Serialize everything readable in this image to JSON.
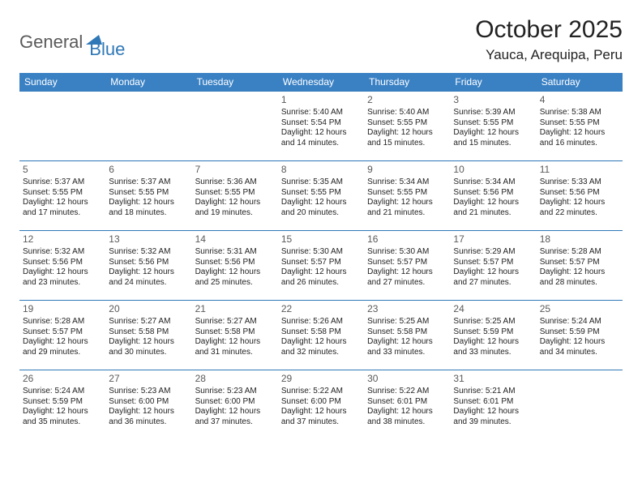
{
  "logo": {
    "text1": "General",
    "text2": "Blue"
  },
  "title": "October 2025",
  "location": "Yauca, Arequipa, Peru",
  "colors": {
    "header_bg": "#3a81c4",
    "header_text": "#ffffff",
    "border": "#2f78b7",
    "daynum": "#5a5a5a",
    "body_text": "#222222",
    "logo_gray": "#5a5a5a",
    "logo_blue": "#2f78b7",
    "background": "#ffffff"
  },
  "typography": {
    "month_title_size": 30,
    "location_size": 17,
    "header_cell_size": 12,
    "daynum_size": 12,
    "body_size": 10,
    "logo_size": 22
  },
  "weekdays": [
    "Sunday",
    "Monday",
    "Tuesday",
    "Wednesday",
    "Thursday",
    "Friday",
    "Saturday"
  ],
  "weeks": [
    [
      null,
      null,
      null,
      {
        "n": "1",
        "sr": "Sunrise: 5:40 AM",
        "ss": "Sunset: 5:54 PM",
        "d1": "Daylight: 12 hours",
        "d2": "and 14 minutes."
      },
      {
        "n": "2",
        "sr": "Sunrise: 5:40 AM",
        "ss": "Sunset: 5:55 PM",
        "d1": "Daylight: 12 hours",
        "d2": "and 15 minutes."
      },
      {
        "n": "3",
        "sr": "Sunrise: 5:39 AM",
        "ss": "Sunset: 5:55 PM",
        "d1": "Daylight: 12 hours",
        "d2": "and 15 minutes."
      },
      {
        "n": "4",
        "sr": "Sunrise: 5:38 AM",
        "ss": "Sunset: 5:55 PM",
        "d1": "Daylight: 12 hours",
        "d2": "and 16 minutes."
      }
    ],
    [
      {
        "n": "5",
        "sr": "Sunrise: 5:37 AM",
        "ss": "Sunset: 5:55 PM",
        "d1": "Daylight: 12 hours",
        "d2": "and 17 minutes."
      },
      {
        "n": "6",
        "sr": "Sunrise: 5:37 AM",
        "ss": "Sunset: 5:55 PM",
        "d1": "Daylight: 12 hours",
        "d2": "and 18 minutes."
      },
      {
        "n": "7",
        "sr": "Sunrise: 5:36 AM",
        "ss": "Sunset: 5:55 PM",
        "d1": "Daylight: 12 hours",
        "d2": "and 19 minutes."
      },
      {
        "n": "8",
        "sr": "Sunrise: 5:35 AM",
        "ss": "Sunset: 5:55 PM",
        "d1": "Daylight: 12 hours",
        "d2": "and 20 minutes."
      },
      {
        "n": "9",
        "sr": "Sunrise: 5:34 AM",
        "ss": "Sunset: 5:55 PM",
        "d1": "Daylight: 12 hours",
        "d2": "and 21 minutes."
      },
      {
        "n": "10",
        "sr": "Sunrise: 5:34 AM",
        "ss": "Sunset: 5:56 PM",
        "d1": "Daylight: 12 hours",
        "d2": "and 21 minutes."
      },
      {
        "n": "11",
        "sr": "Sunrise: 5:33 AM",
        "ss": "Sunset: 5:56 PM",
        "d1": "Daylight: 12 hours",
        "d2": "and 22 minutes."
      }
    ],
    [
      {
        "n": "12",
        "sr": "Sunrise: 5:32 AM",
        "ss": "Sunset: 5:56 PM",
        "d1": "Daylight: 12 hours",
        "d2": "and 23 minutes."
      },
      {
        "n": "13",
        "sr": "Sunrise: 5:32 AM",
        "ss": "Sunset: 5:56 PM",
        "d1": "Daylight: 12 hours",
        "d2": "and 24 minutes."
      },
      {
        "n": "14",
        "sr": "Sunrise: 5:31 AM",
        "ss": "Sunset: 5:56 PM",
        "d1": "Daylight: 12 hours",
        "d2": "and 25 minutes."
      },
      {
        "n": "15",
        "sr": "Sunrise: 5:30 AM",
        "ss": "Sunset: 5:57 PM",
        "d1": "Daylight: 12 hours",
        "d2": "and 26 minutes."
      },
      {
        "n": "16",
        "sr": "Sunrise: 5:30 AM",
        "ss": "Sunset: 5:57 PM",
        "d1": "Daylight: 12 hours",
        "d2": "and 27 minutes."
      },
      {
        "n": "17",
        "sr": "Sunrise: 5:29 AM",
        "ss": "Sunset: 5:57 PM",
        "d1": "Daylight: 12 hours",
        "d2": "and 27 minutes."
      },
      {
        "n": "18",
        "sr": "Sunrise: 5:28 AM",
        "ss": "Sunset: 5:57 PM",
        "d1": "Daylight: 12 hours",
        "d2": "and 28 minutes."
      }
    ],
    [
      {
        "n": "19",
        "sr": "Sunrise: 5:28 AM",
        "ss": "Sunset: 5:57 PM",
        "d1": "Daylight: 12 hours",
        "d2": "and 29 minutes."
      },
      {
        "n": "20",
        "sr": "Sunrise: 5:27 AM",
        "ss": "Sunset: 5:58 PM",
        "d1": "Daylight: 12 hours",
        "d2": "and 30 minutes."
      },
      {
        "n": "21",
        "sr": "Sunrise: 5:27 AM",
        "ss": "Sunset: 5:58 PM",
        "d1": "Daylight: 12 hours",
        "d2": "and 31 minutes."
      },
      {
        "n": "22",
        "sr": "Sunrise: 5:26 AM",
        "ss": "Sunset: 5:58 PM",
        "d1": "Daylight: 12 hours",
        "d2": "and 32 minutes."
      },
      {
        "n": "23",
        "sr": "Sunrise: 5:25 AM",
        "ss": "Sunset: 5:58 PM",
        "d1": "Daylight: 12 hours",
        "d2": "and 33 minutes."
      },
      {
        "n": "24",
        "sr": "Sunrise: 5:25 AM",
        "ss": "Sunset: 5:59 PM",
        "d1": "Daylight: 12 hours",
        "d2": "and 33 minutes."
      },
      {
        "n": "25",
        "sr": "Sunrise: 5:24 AM",
        "ss": "Sunset: 5:59 PM",
        "d1": "Daylight: 12 hours",
        "d2": "and 34 minutes."
      }
    ],
    [
      {
        "n": "26",
        "sr": "Sunrise: 5:24 AM",
        "ss": "Sunset: 5:59 PM",
        "d1": "Daylight: 12 hours",
        "d2": "and 35 minutes."
      },
      {
        "n": "27",
        "sr": "Sunrise: 5:23 AM",
        "ss": "Sunset: 6:00 PM",
        "d1": "Daylight: 12 hours",
        "d2": "and 36 minutes."
      },
      {
        "n": "28",
        "sr": "Sunrise: 5:23 AM",
        "ss": "Sunset: 6:00 PM",
        "d1": "Daylight: 12 hours",
        "d2": "and 37 minutes."
      },
      {
        "n": "29",
        "sr": "Sunrise: 5:22 AM",
        "ss": "Sunset: 6:00 PM",
        "d1": "Daylight: 12 hours",
        "d2": "and 37 minutes."
      },
      {
        "n": "30",
        "sr": "Sunrise: 5:22 AM",
        "ss": "Sunset: 6:01 PM",
        "d1": "Daylight: 12 hours",
        "d2": "and 38 minutes."
      },
      {
        "n": "31",
        "sr": "Sunrise: 5:21 AM",
        "ss": "Sunset: 6:01 PM",
        "d1": "Daylight: 12 hours",
        "d2": "and 39 minutes."
      },
      null
    ]
  ]
}
